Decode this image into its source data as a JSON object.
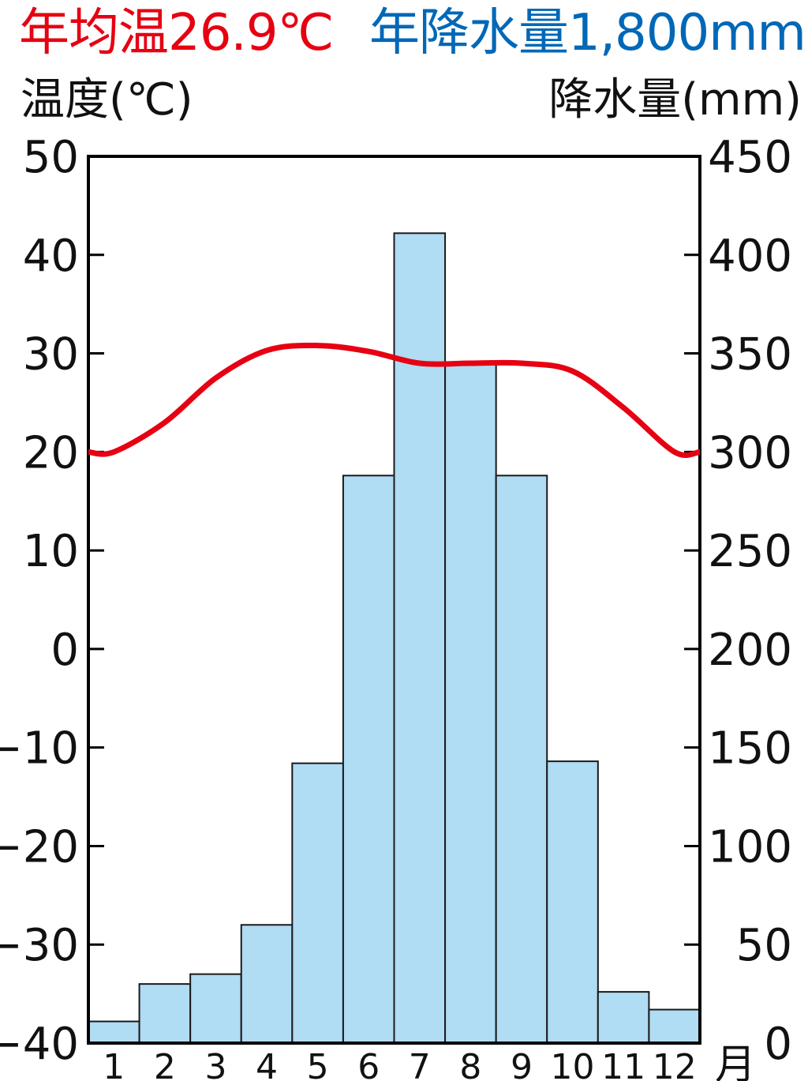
{
  "header": {
    "temperature_summary": "年均温26.9℃",
    "precipitation_summary": "年降水量1,800mm"
  },
  "chart_data": {
    "type": "bar+line",
    "categories": [
      "1",
      "2",
      "3",
      "4",
      "5",
      "6",
      "7",
      "8",
      "9",
      "10",
      "11",
      "12"
    ],
    "x_unit_label": "月",
    "left_axis": {
      "label": "温度(℃)",
      "ylim": [
        -40,
        50
      ],
      "ticks": [
        "50",
        "40",
        "30",
        "20",
        "10",
        "0",
        "−10",
        "−20",
        "−30",
        "−40"
      ]
    },
    "right_axis": {
      "label": "降水量(mm)",
      "ylim": [
        0,
        450
      ],
      "ticks": [
        "450",
        "400",
        "350",
        "300",
        "250",
        "200",
        "150",
        "100",
        "50",
        "0"
      ]
    },
    "series": [
      {
        "type": "bar",
        "axis": "right",
        "values": [
          11,
          30,
          35,
          60,
          142,
          288,
          411,
          345,
          288,
          143,
          26,
          17
        ],
        "color": "#b0dcf4"
      },
      {
        "type": "line",
        "axis": "left",
        "values": [
          20,
          23,
          27.5,
          30.3,
          30.8,
          30.2,
          29,
          29,
          29,
          28.2,
          24.5,
          20
        ],
        "color": "#e60012"
      }
    ],
    "grid": false
  }
}
